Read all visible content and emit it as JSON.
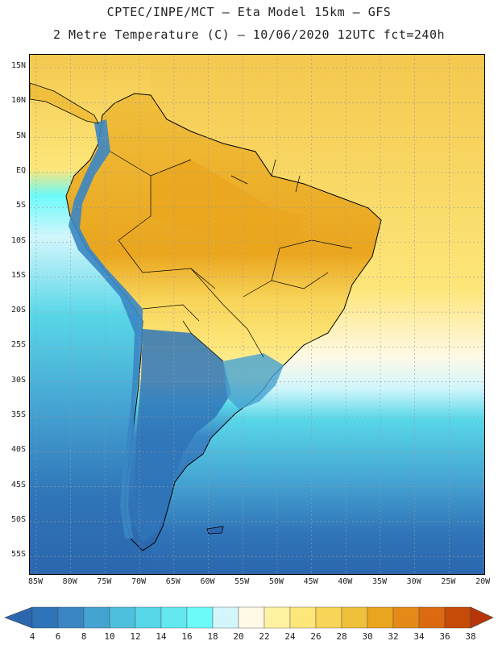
{
  "header": {
    "title_line1": "CPTEC/INPE/MCT –  Eta Model 15km – GFS",
    "title_line2": "2 Metre Temperature (C) – 10/06/2020 12UTC fct=240h"
  },
  "map": {
    "lat_labels": [
      "15N",
      "10N",
      "5N",
      "EQ",
      "5S",
      "10S",
      "15S",
      "20S",
      "25S",
      "30S",
      "35S",
      "40S",
      "45S",
      "50S",
      "55S"
    ],
    "lon_labels": [
      "85W",
      "80W",
      "75W",
      "70W",
      "65W",
      "60W",
      "55W",
      "50W",
      "45W",
      "40W",
      "35W",
      "30W",
      "25W",
      "20W"
    ],
    "ocean_north_color": "#f4c84e",
    "ocean_south_color": "#2b6cb5",
    "land_color": "#f0b23c",
    "andes_color": "#3a8fd0",
    "coastline_color": "#000000"
  },
  "colorbar": {
    "levels": [
      "4",
      "6",
      "8",
      "10",
      "12",
      "14",
      "16",
      "18",
      "20",
      "22",
      "24",
      "26",
      "28",
      "30",
      "32",
      "34",
      "36",
      "38"
    ],
    "colors": [
      "#2b66ae",
      "#2f74b8",
      "#3a86c4",
      "#45a3d2",
      "#4cc0dd",
      "#58d7e8",
      "#63e8f0",
      "#6cfafa",
      "#d2f6fc",
      "#fff9e6",
      "#fff2a3",
      "#fde67a",
      "#f8d458",
      "#f0bf3c",
      "#eaa51e",
      "#e58a18",
      "#dc6a10",
      "#c64a08",
      "#b8350a"
    ]
  }
}
